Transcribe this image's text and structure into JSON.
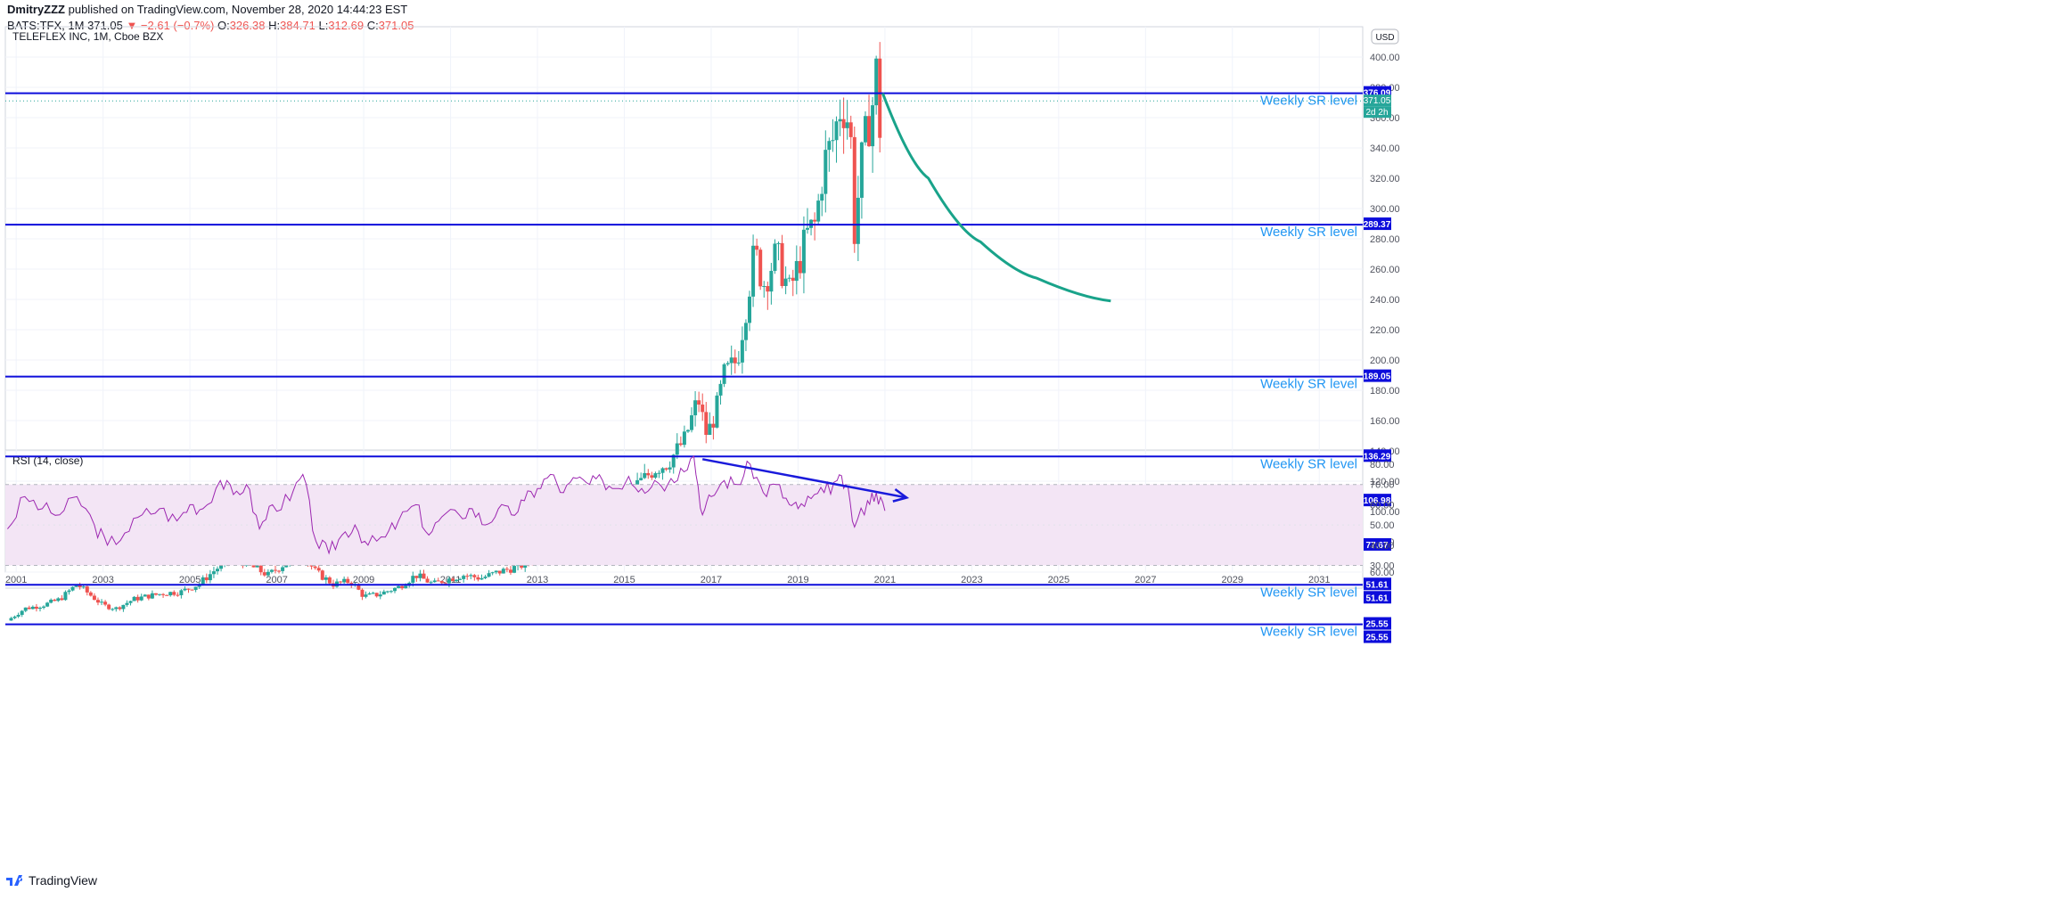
{
  "header": {
    "author": "DmitryZZZ",
    "published": " published on TradingView.com, November 28, 2020 14:44:23 EST",
    "symbol": "BATS:TFX, 1M",
    "price": "371.05",
    "change": "▼ −2.61 (−0.7%)",
    "o_label": "O:",
    "o": "326.38",
    "h_label": "H:",
    "h": "384.71",
    "l_label": "L:",
    "l": "312.69",
    "c_label": "C:",
    "c": "371.05"
  },
  "footer": {
    "brand": "TradingView"
  },
  "colors": {
    "up": "#26a69a",
    "down": "#ef5350",
    "sr_line": "#0d0ddb",
    "sr_label": "#2196f3",
    "projection": "#19a38a",
    "rsi_line": "#9c27b0",
    "rsi_band": "#f3e5f5",
    "trend_arrow": "#1a1adb",
    "price_tag": "#26a69a"
  },
  "chart_data": [
    {
      "type": "candlestick",
      "title": "TELEFLEX INC, 1M, Cboe BZX",
      "currency": "USD",
      "ylim": [
        10,
        420
      ],
      "y_ticks": [
        "400.00",
        "380.00",
        "360.00",
        "340.00",
        "320.00",
        "300.00",
        "280.00",
        "260.00",
        "240.00",
        "220.00",
        "200.00",
        "180.00",
        "160.00",
        "140.00",
        "120.00",
        "100.00",
        "80.00",
        "60.00"
      ],
      "x_range": [
        2000.75,
        2032.0
      ],
      "x_ticks": [
        "2001",
        "2003",
        "2005",
        "2007",
        "2009",
        "2011",
        "2013",
        "2015",
        "2017",
        "2019",
        "2021",
        "2023",
        "2025",
        "2027",
        "2029",
        "2031"
      ],
      "price_path": [
        [
          2000.8,
          28
        ],
        [
          2001.2,
          36
        ],
        [
          2001.6,
          38
        ],
        [
          2002.0,
          42
        ],
        [
          2002.4,
          52
        ],
        [
          2002.7,
          45
        ],
        [
          2003.0,
          38
        ],
        [
          2003.3,
          36
        ],
        [
          2003.7,
          42
        ],
        [
          2004.0,
          44
        ],
        [
          2004.4,
          46
        ],
        [
          2004.8,
          47
        ],
        [
          2005.2,
          52
        ],
        [
          2005.6,
          62
        ],
        [
          2006.0,
          70
        ],
        [
          2006.4,
          64
        ],
        [
          2006.8,
          58
        ],
        [
          2007.2,
          66
        ],
        [
          2007.5,
          75
        ],
        [
          2007.9,
          60
        ],
        [
          2008.3,
          52
        ],
        [
          2008.7,
          54
        ],
        [
          2009.0,
          44
        ],
        [
          2009.3,
          45
        ],
        [
          2009.8,
          50
        ],
        [
          2010.2,
          58
        ],
        [
          2010.6,
          52
        ],
        [
          2010.9,
          55
        ],
        [
          2011.3,
          58
        ],
        [
          2011.7,
          56
        ],
        [
          2012.1,
          60
        ],
        [
          2012.6,
          64
        ],
        [
          2013.0,
          70
        ],
        [
          2013.4,
          78
        ],
        [
          2013.7,
          92
        ],
        [
          2014.1,
          98
        ],
        [
          2014.6,
          104
        ],
        [
          2015.0,
          110
        ],
        [
          2015.3,
          118
        ],
        [
          2015.7,
          128
        ],
        [
          2016.0,
          132
        ],
        [
          2016.4,
          148
        ],
        [
          2016.7,
          175
        ],
        [
          2016.8,
          162
        ],
        [
          2016.9,
          150
        ],
        [
          2017.1,
          165
        ],
        [
          2017.3,
          190
        ],
        [
          2017.6,
          200
        ],
        [
          2017.8,
          235
        ],
        [
          2018.0,
          272
        ],
        [
          2018.2,
          250
        ],
        [
          2018.5,
          270
        ],
        [
          2018.8,
          245
        ],
        [
          2019.0,
          262
        ],
        [
          2019.2,
          282
        ],
        [
          2019.4,
          290
        ],
        [
          2019.6,
          330
        ],
        [
          2019.8,
          345
        ],
        [
          2020.0,
          370
        ],
        [
          2020.2,
          355
        ],
        [
          2020.3,
          285
        ],
        [
          2020.5,
          340
        ],
        [
          2020.7,
          365
        ],
        [
          2020.8,
          390
        ],
        [
          2020.9,
          346
        ],
        [
          2021.0,
          375
        ]
      ],
      "candle_end": 2020.92,
      "current_price": 371.05,
      "current_price_label": "371.05",
      "countdown_label": "2d 2h",
      "sr_levels": [
        {
          "value": 376.09,
          "label": "376.09",
          "text": "Weekly SR level"
        },
        {
          "value": 289.37,
          "label": "289.37",
          "text": "Weekly SR level"
        },
        {
          "value": 189.05,
          "label": "189.05",
          "text": "Weekly SR level"
        },
        {
          "value": 136.29,
          "label": "136.29",
          "text": "Weekly SR level"
        },
        {
          "value": 106.98,
          "label": "106.98",
          "text": "Weekly SR level"
        },
        {
          "value": 77.67,
          "label": "77.67",
          "text": "Weekly SR level"
        },
        {
          "value": 51.61,
          "label": "51.61",
          "text": "Weekly SR level",
          "label2": "51.61"
        },
        {
          "value": 25.55,
          "label": "25.55",
          "text": "Weekly SR level",
          "label2": "25.55"
        }
      ],
      "projection_curve": [
        [
          2020.95,
          376
        ],
        [
          2022.0,
          320
        ],
        [
          2023.2,
          278
        ],
        [
          2024.5,
          254
        ],
        [
          2026.2,
          239
        ]
      ]
    },
    {
      "type": "line",
      "title": "RSI (14, close)",
      "ylim": [
        28,
        84
      ],
      "y_ticks": [
        "80.00",
        "70.00",
        "60.00",
        "50.00",
        "40.00",
        "30.00"
      ],
      "band": [
        30,
        70
      ],
      "rsi_path": [
        [
          2000.8,
          48
        ],
        [
          2001.2,
          64
        ],
        [
          2001.6,
          58
        ],
        [
          2002.0,
          55
        ],
        [
          2002.4,
          64
        ],
        [
          2002.8,
          50
        ],
        [
          2003.1,
          40
        ],
        [
          2003.5,
          46
        ],
        [
          2003.9,
          55
        ],
        [
          2004.3,
          58
        ],
        [
          2004.7,
          52
        ],
        [
          2005.0,
          60
        ],
        [
          2005.3,
          58
        ],
        [
          2005.7,
          72
        ],
        [
          2006.0,
          65
        ],
        [
          2006.3,
          70
        ],
        [
          2006.6,
          48
        ],
        [
          2006.9,
          60
        ],
        [
          2007.3,
          62
        ],
        [
          2007.6,
          75
        ],
        [
          2007.9,
          42
        ],
        [
          2008.2,
          36
        ],
        [
          2008.5,
          45
        ],
        [
          2008.8,
          50
        ],
        [
          2009.1,
          40
        ],
        [
          2009.5,
          44
        ],
        [
          2009.8,
          52
        ],
        [
          2010.2,
          60
        ],
        [
          2010.5,
          45
        ],
        [
          2010.8,
          54
        ],
        [
          2011.2,
          55
        ],
        [
          2011.5,
          58
        ],
        [
          2011.8,
          50
        ],
        [
          2012.1,
          58
        ],
        [
          2012.4,
          55
        ],
        [
          2012.7,
          62
        ],
        [
          2013.0,
          68
        ],
        [
          2013.3,
          75
        ],
        [
          2013.6,
          66
        ],
        [
          2013.9,
          73
        ],
        [
          2014.2,
          70
        ],
        [
          2014.5,
          72
        ],
        [
          2014.8,
          68
        ],
        [
          2015.1,
          74
        ],
        [
          2015.4,
          68
        ],
        [
          2015.7,
          72
        ],
        [
          2016.0,
          70
        ],
        [
          2016.3,
          78
        ],
        [
          2016.6,
          84
        ],
        [
          2016.8,
          55
        ],
        [
          2017.0,
          64
        ],
        [
          2017.3,
          72
        ],
        [
          2017.6,
          70
        ],
        [
          2017.9,
          80
        ],
        [
          2018.2,
          66
        ],
        [
          2018.5,
          70
        ],
        [
          2018.8,
          60
        ],
        [
          2019.0,
          58
        ],
        [
          2019.3,
          63
        ],
        [
          2019.6,
          66
        ],
        [
          2019.9,
          72
        ],
        [
          2020.1,
          70
        ],
        [
          2020.3,
          49
        ],
        [
          2020.6,
          62
        ],
        [
          2020.8,
          66
        ],
        [
          2021.0,
          57
        ]
      ],
      "trend_arrow": [
        [
          2016.8,
          82.5
        ],
        [
          2021.5,
          63.5
        ]
      ]
    }
  ]
}
